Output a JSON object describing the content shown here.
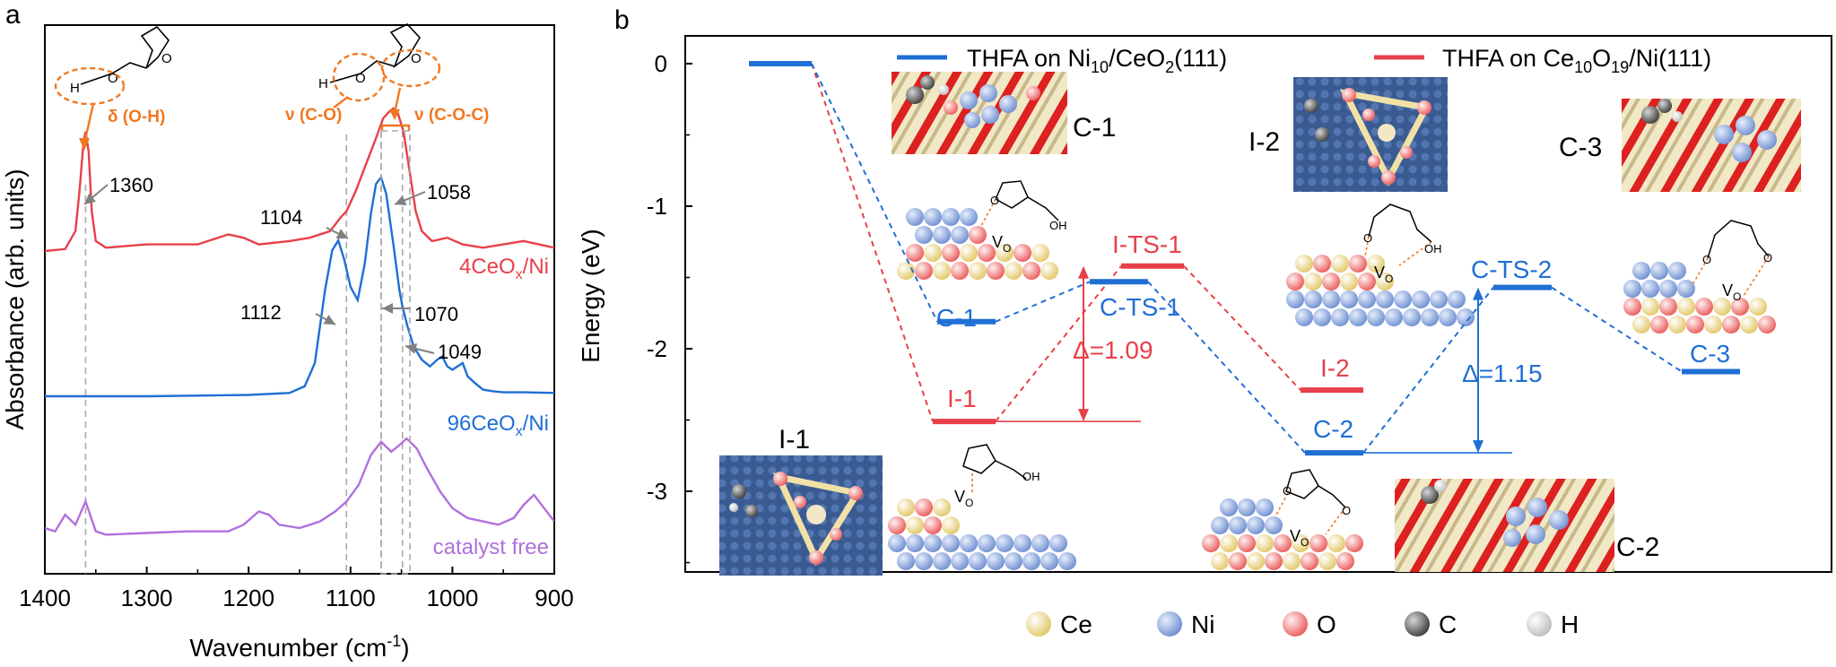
{
  "panel_a": {
    "letter": "a",
    "xlabel": "Wavenumber (cm",
    "xlabel_sup": "-1",
    "xlabel_end": ")",
    "ylabel": "Absorbance (arb. units)",
    "delta_label": "δ (O-H)",
    "nu_co_label": "ν (C-O)",
    "nu_coc_label": "ν (C-O-C)",
    "h_label": "H",
    "o_label": "O",
    "series_labels": [
      {
        "main": "4CeO",
        "sub": "x",
        "end": "/Ni"
      },
      {
        "main": "96CeO",
        "sub": "x",
        "end": "/Ni"
      },
      {
        "main": "catalyst free",
        "sub": "",
        "end": ""
      }
    ]
  },
  "panel_b": {
    "letter": "b",
    "ylabel": "Energy (eV)",
    "legend": [
      {
        "pre": "THFA on Ni",
        "s1": "10",
        "mid": "/CeO",
        "s2": "2",
        "post": "(111)"
      },
      {
        "pre": "THFA on Ce",
        "s1": "10",
        "mid": "O",
        "s2": "19",
        "post": "/Ni(111)"
      }
    ],
    "delta_red": "Δ=1.09",
    "delta_blue": "Δ=1.15",
    "vo_main": "V",
    "vo_sub": "O",
    "oh_label": "OH",
    "o_label": "O",
    "snapshot_labels": [
      "C-1",
      "I-2",
      "C-3",
      "I-1",
      "C-2"
    ],
    "atom_legend": [
      "Ce",
      "Ni",
      "O",
      "C",
      "H"
    ]
  },
  "colors": {
    "red": "#e8404a",
    "blue": "#1f6fd4",
    "purple": "#b070dc",
    "orange": "#f07820"
  },
  "chart_data": [
    {
      "type": "line",
      "xlabel": "Wavenumber (cm-1)",
      "ylabel": "Absorbance (arb. units)",
      "xlim": [
        1400,
        900
      ],
      "x_ticks": [
        1400,
        1300,
        1200,
        1100,
        1000,
        900
      ],
      "grid": false,
      "reference_lines": [
        1360,
        1104,
        1070,
        1049
      ],
      "annotations": [
        1360,
        1104,
        1058,
        1112,
        1070,
        1049
      ],
      "series": [
        {
          "name": "4CeOx/Ni",
          "color": "#e8404a",
          "x": [
            1400,
            1380,
            1370,
            1366,
            1362,
            1360,
            1357,
            1354,
            1350,
            1340,
            1300,
            1250,
            1220,
            1205,
            1190,
            1160,
            1140,
            1120,
            1110,
            1104,
            1095,
            1085,
            1075,
            1068,
            1062,
            1058,
            1054,
            1048,
            1042,
            1036,
            1030,
            1020,
            1005,
            990,
            970,
            950,
            930,
            915,
            900
          ],
          "y": [
            0.0,
            0.006,
            0.06,
            0.18,
            0.33,
            0.36,
            0.3,
            0.12,
            0.03,
            0.01,
            0.02,
            0.02,
            0.05,
            0.04,
            0.02,
            0.03,
            0.04,
            0.06,
            0.1,
            0.12,
            0.18,
            0.26,
            0.34,
            0.4,
            0.42,
            0.43,
            0.42,
            0.36,
            0.24,
            0.12,
            0.06,
            0.03,
            0.04,
            0.02,
            0.01,
            0.02,
            0.03,
            0.02,
            0.01
          ]
        },
        {
          "name": "96CeOx/Ni",
          "color": "#1f6fd4",
          "x": [
            1400,
            1300,
            1200,
            1160,
            1145,
            1135,
            1125,
            1118,
            1112,
            1106,
            1100,
            1093,
            1086,
            1080,
            1075,
            1070,
            1065,
            1058,
            1052,
            1049,
            1044,
            1038,
            1030,
            1022,
            1015,
            1010,
            1005,
            1000,
            995,
            990,
            985,
            978,
            970,
            960,
            950,
            930,
            900
          ],
          "y": [
            0.0,
            0.0,
            0.004,
            0.01,
            0.03,
            0.1,
            0.32,
            0.44,
            0.47,
            0.41,
            0.33,
            0.29,
            0.4,
            0.55,
            0.64,
            0.66,
            0.61,
            0.46,
            0.32,
            0.27,
            0.21,
            0.15,
            0.11,
            0.09,
            0.11,
            0.12,
            0.09,
            0.08,
            0.09,
            0.1,
            0.06,
            0.04,
            0.02,
            0.015,
            0.012,
            0.012,
            0.01
          ]
        },
        {
          "name": "catalyst free",
          "color": "#b070dc",
          "x": [
            1400,
            1390,
            1380,
            1370,
            1360,
            1350,
            1340,
            1300,
            1260,
            1220,
            1205,
            1190,
            1180,
            1170,
            1150,
            1130,
            1115,
            1104,
            1092,
            1080,
            1070,
            1060,
            1052,
            1045,
            1035,
            1025,
            1012,
            1000,
            985,
            970,
            955,
            940,
            930,
            920,
            910,
            900
          ],
          "y": [
            0.0,
            -0.01,
            0.04,
            0.01,
            0.08,
            -0.01,
            -0.02,
            -0.015,
            -0.01,
            -0.01,
            0.01,
            0.05,
            0.04,
            0.01,
            0.0,
            0.02,
            0.05,
            0.08,
            0.13,
            0.22,
            0.26,
            0.23,
            0.25,
            0.27,
            0.24,
            0.18,
            0.11,
            0.06,
            0.03,
            0.02,
            0.01,
            0.03,
            0.07,
            0.1,
            0.06,
            0.02
          ]
        }
      ]
    },
    {
      "type": "line",
      "ylabel": "Energy (eV)",
      "ylim": [
        -3.6,
        0.25
      ],
      "y_ticks": [
        0,
        -1,
        -2,
        -3
      ],
      "grid": false,
      "legend_position": "top",
      "series": [
        {
          "name": "THFA on Ni10/CeO2(111)",
          "color": "#1f6fd4",
          "states": [
            "",
            "C-1",
            "C-TS-1",
            "C-2",
            "C-TS-2",
            "C-3"
          ],
          "energies": [
            0,
            -1.81,
            -1.53,
            -2.73,
            -1.57,
            -2.16
          ]
        },
        {
          "name": "THFA on Ce10O19/Ni(111)",
          "color": "#e8404a",
          "states": [
            "",
            "I-1",
            "I-TS-1",
            "I-2"
          ],
          "energies": [
            0,
            -2.51,
            -1.42,
            -2.29
          ]
        }
      ],
      "barriers": [
        {
          "label": "Δ=1.09",
          "from": -2.51,
          "to": -1.42
        },
        {
          "label": "Δ=1.15",
          "from": -2.73,
          "to": -1.57
        }
      ]
    }
  ]
}
